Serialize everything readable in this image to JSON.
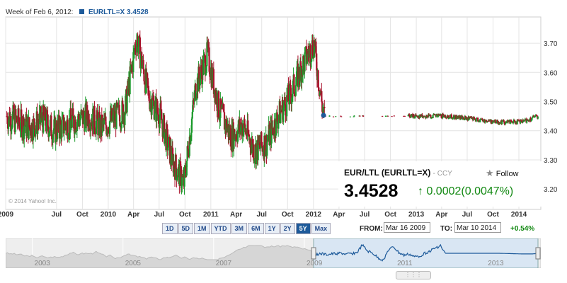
{
  "header": {
    "date_label": "Week of Feb 6, 2012:",
    "series_label": "EURLTL=X 3.4528"
  },
  "copyright": "© 2014 Yahoo! Inc.",
  "quote": {
    "name": "EUR/LTL (EURLTL=X)",
    "currency": "- CCY",
    "follow": "Follow",
    "price": "3.4528",
    "change": "0.0002",
    "change_pct": "(0.0047%)"
  },
  "range_buttons": [
    "1D",
    "5D",
    "1M",
    "YTD",
    "3M",
    "6M",
    "1Y",
    "2Y",
    "5Y",
    "Max"
  ],
  "range_selected": "5Y",
  "from_label": "FROM:",
  "from_value": "Mar 16 2009",
  "to_label": "TO:",
  "to_value": "Mar 10 2014",
  "range_change": "+0.54%",
  "navigator_years": [
    "2003",
    "2005",
    "2007",
    "2009",
    "2011",
    "2013"
  ],
  "colors": {
    "up": "#1a9a2a",
    "down": "#a8102a",
    "accent": "#1d5a9a",
    "positive": "#118811"
  },
  "chart_data": {
    "type": "candlestick",
    "ylim": [
      3.13,
      3.79
    ],
    "y_ticks": [
      "3.20",
      "3.30",
      "3.40",
      "3.50",
      "3.60",
      "3.70"
    ],
    "x_ticks": [
      "2009",
      "Jul",
      "Oct",
      "2010",
      "Apr",
      "Jul",
      "Oct",
      "2011",
      "Apr",
      "Jul",
      "Oct",
      "2012",
      "Apr",
      "Jul",
      "Oct",
      "2013",
      "Apr",
      "Jul",
      "Oct",
      "2014"
    ],
    "grid": true,
    "marker": {
      "label": "Week of Feb 6, 2012",
      "value": 3.4528
    },
    "series": [
      {
        "name": "EURLTL=X",
        "x": [
          "2009-01-05",
          "2009-02-16",
          "2009-03-30",
          "2009-05-11",
          "2009-06-22",
          "2009-08-03",
          "2009-09-14",
          "2009-10-26",
          "2009-12-07",
          "2010-01-18",
          "2010-03-01",
          "2010-04-12",
          "2010-05-24",
          "2010-07-05",
          "2010-08-16",
          "2010-09-27",
          "2010-11-08",
          "2010-12-20",
          "2011-01-31",
          "2011-03-14",
          "2011-04-25",
          "2011-06-06",
          "2011-07-18",
          "2011-08-29",
          "2011-10-10",
          "2011-11-21",
          "2012-01-02",
          "2012-02-06",
          "2012-04-16",
          "2012-07-16",
          "2012-10-15",
          "2013-01-14",
          "2013-04-15",
          "2013-07-15",
          "2013-10-14",
          "2014-01-13",
          "2014-03-10"
        ],
        "values": [
          3.45,
          3.43,
          3.41,
          3.44,
          3.4,
          3.42,
          3.44,
          3.45,
          3.41,
          3.44,
          3.47,
          3.72,
          3.52,
          3.45,
          3.3,
          3.22,
          3.55,
          3.66,
          3.47,
          3.38,
          3.42,
          3.33,
          3.36,
          3.45,
          3.52,
          3.62,
          3.7,
          3.45,
          3.45,
          3.45,
          3.45,
          3.45,
          3.45,
          3.44,
          3.43,
          3.43,
          3.45
        ]
      }
    ]
  }
}
